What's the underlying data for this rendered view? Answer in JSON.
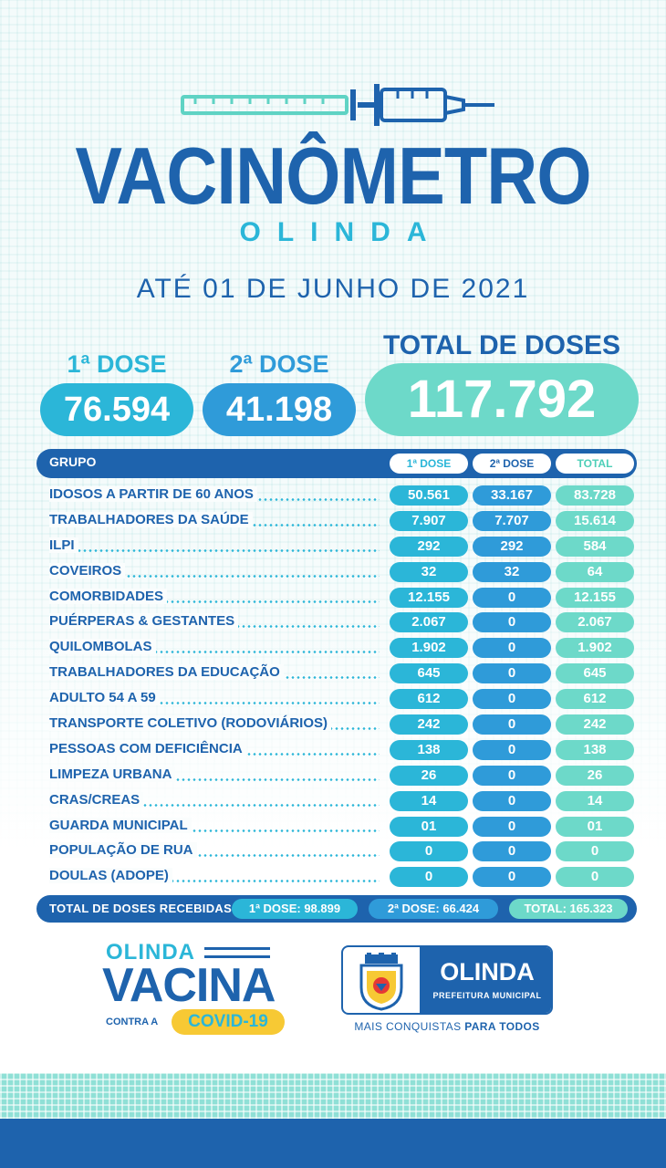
{
  "header": {
    "title": "VACINÔMETRO",
    "subtitle": "OLINDA",
    "date": "ATÉ 01 DE JUNHO DE 2021"
  },
  "summary": {
    "dose1_label": "1ª DOSE",
    "dose1_value": "76.594",
    "dose2_label": "2ª DOSE",
    "dose2_value": "41.198",
    "total_label": "TOTAL  DE DOSES",
    "total_value": "117.792"
  },
  "table": {
    "headers": {
      "group": "GRUPO",
      "dose1": "1ª DOSE",
      "dose2": "2ª DOSE",
      "total": "TOTAL"
    },
    "rows": [
      {
        "group": "IDOSOS A PARTIR DE 60 ANOS",
        "dose1": "50.561",
        "dose2": "33.167",
        "total": "83.728"
      },
      {
        "group": "TRABALHADORES DA SAÚDE",
        "dose1": "7.907",
        "dose2": "7.707",
        "total": "15.614"
      },
      {
        "group": "ILPI",
        "dose1": "292",
        "dose2": "292",
        "total": "584"
      },
      {
        "group": "COVEIROS",
        "dose1": "32",
        "dose2": "32",
        "total": "64"
      },
      {
        "group": "COMORBIDADES",
        "dose1": "12.155",
        "dose2": "0",
        "total": "12.155"
      },
      {
        "group": "PUÉRPERAS & GESTANTES",
        "dose1": "2.067",
        "dose2": "0",
        "total": "2.067"
      },
      {
        "group": "QUILOMBOLAS",
        "dose1": "1.902",
        "dose2": "0",
        "total": "1.902"
      },
      {
        "group": "TRABALHADORES DA EDUCAÇÃO",
        "dose1": "645",
        "dose2": "0",
        "total": "645"
      },
      {
        "group": "ADULTO 54 A 59",
        "dose1": "612",
        "dose2": "0",
        "total": "612"
      },
      {
        "group": "TRANSPORTE COLETIVO (RODOVIÁRIOS)",
        "dose1": "242",
        "dose2": "0",
        "total": "242"
      },
      {
        "group": "PESSOAS COM DEFICIÊNCIA",
        "dose1": "138",
        "dose2": "0",
        "total": "138"
      },
      {
        "group": "LIMPEZA URBANA",
        "dose1": "26",
        "dose2": "0",
        "total": "26"
      },
      {
        "group": "CRAS/CREAS",
        "dose1": "14",
        "dose2": "0",
        "total": "14"
      },
      {
        "group": "GUARDA MUNICIPAL",
        "dose1": "01",
        "dose2": "0",
        "total": "01"
      },
      {
        "group": "POPULAÇÃO DE RUA",
        "dose1": "0",
        "dose2": "0",
        "total": "0"
      },
      {
        "group": "DOULAS (ADOPE)",
        "dose1": "0",
        "dose2": "0",
        "total": "0"
      }
    ],
    "totals": {
      "label": "TOTAL DE DOSES  RECEBIDAS",
      "dose1": "1ª DOSE: 98.899",
      "dose2": "2ª DOSE: 66.424",
      "total": "TOTAL: 165.323"
    }
  },
  "campaign_logo": {
    "top": "OLINDA",
    "main": "VACINA",
    "contra": "CONTRA A",
    "badge": "COVID-19"
  },
  "city_logo": {
    "name": "OLINDA",
    "sub": "PREFEITURA MUNICIPAL",
    "slogan_regular": "MAIS CONQUISTAS ",
    "slogan_bold": "PARA TODOS"
  },
  "colors": {
    "primary_blue": "#1e63ad",
    "cyan": "#2bb6d8",
    "mid_blue": "#2f9bd9",
    "teal": "#6dd9c9",
    "yellow": "#f7c934"
  }
}
